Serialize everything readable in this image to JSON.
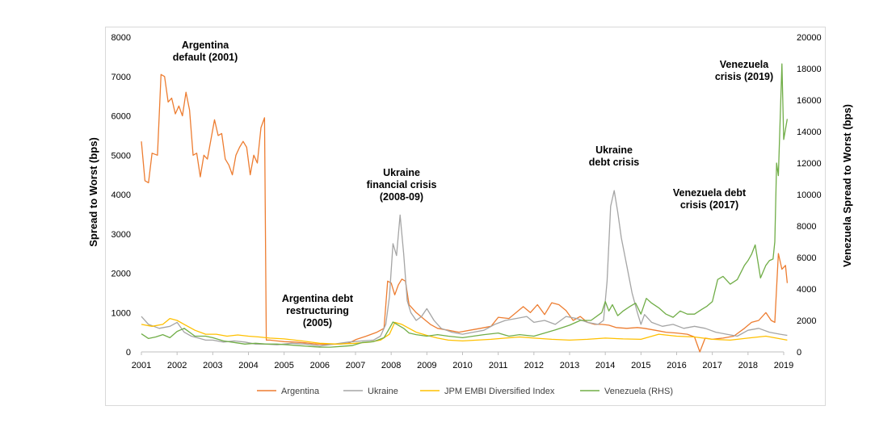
{
  "chart_data": {
    "type": "line",
    "ylabel": "Spread to Worst (bps)",
    "y2label": "Venezuela Spread to Worst (bps)",
    "ylim": [
      0,
      8000
    ],
    "y2lim": [
      0,
      20000
    ],
    "yticks": [
      "0",
      "1000",
      "2000",
      "3000",
      "4000",
      "5000",
      "6000",
      "7000",
      "8000"
    ],
    "y2ticks": [
      "0",
      "2000",
      "4000",
      "6000",
      "8000",
      "10000",
      "12000",
      "14000",
      "16000",
      "18000",
      "20000"
    ],
    "xlim": [
      2001,
      2019
    ],
    "xticks": [
      "2001",
      "2002",
      "2003",
      "2004",
      "2005",
      "2006",
      "2007",
      "2008",
      "2009",
      "2010",
      "2011",
      "2012",
      "2013",
      "2014",
      "2015",
      "2016",
      "2017",
      "2018",
      "2019"
    ],
    "grid": false,
    "legend_position": "bottom",
    "series": [
      {
        "name": "Argentina",
        "color": "#ED7D31",
        "axis": "left",
        "x": [
          2001.0,
          2001.1,
          2001.2,
          2001.3,
          2001.45,
          2001.55,
          2001.65,
          2001.75,
          2001.85,
          2001.95,
          2002.05,
          2002.15,
          2002.25,
          2002.35,
          2002.45,
          2002.55,
          2002.65,
          2002.75,
          2002.85,
          2002.95,
          2003.05,
          2003.15,
          2003.25,
          2003.35,
          2003.45,
          2003.55,
          2003.65,
          2003.75,
          2003.85,
          2003.95,
          2004.05,
          2004.15,
          2004.25,
          2004.35,
          2004.45,
          2004.5,
          2004.6,
          2004.8,
          2005.0,
          2005.3,
          2005.6,
          2005.9,
          2006.2,
          2006.5,
          2006.8,
          2007.0,
          2007.3,
          2007.6,
          2007.8,
          2007.9,
          2008.0,
          2008.1,
          2008.2,
          2008.3,
          2008.4,
          2008.5,
          2008.7,
          2008.9,
          2009.1,
          2009.3,
          2009.6,
          2009.9,
          2010.2,
          2010.5,
          2010.8,
          2011.0,
          2011.3,
          2011.5,
          2011.7,
          2011.9,
          2012.1,
          2012.3,
          2012.5,
          2012.7,
          2012.9,
          2013.1,
          2013.3,
          2013.5,
          2013.7,
          2013.9,
          2014.1,
          2014.3,
          2014.6,
          2014.9,
          2015.1,
          2015.4,
          2015.7,
          2016.0,
          2016.3,
          2016.5,
          2016.65,
          2016.8,
          2017.0,
          2017.3,
          2017.6,
          2017.9,
          2018.1,
          2018.3,
          2018.5,
          2018.65,
          2018.75,
          2018.85,
          2018.95,
          2019.05,
          2019.1
        ],
        "y": [
          5350,
          4350,
          4300,
          5050,
          5000,
          7050,
          7000,
          6350,
          6450,
          6050,
          6250,
          6000,
          6600,
          6150,
          5000,
          5050,
          4450,
          5000,
          4900,
          5400,
          5900,
          5500,
          5550,
          4900,
          4750,
          4500,
          5000,
          5200,
          5350,
          5200,
          4500,
          5000,
          4800,
          5700,
          5950,
          300,
          300,
          280,
          260,
          250,
          230,
          200,
          190,
          200,
          220,
          310,
          400,
          500,
          600,
          1800,
          1750,
          1450,
          1700,
          1850,
          1800,
          1200,
          1000,
          850,
          700,
          600,
          550,
          500,
          550,
          600,
          650,
          880,
          850,
          1000,
          1150,
          1000,
          1200,
          950,
          1250,
          1200,
          1050,
          800,
          900,
          750,
          700,
          700,
          680,
          620,
          600,
          620,
          600,
          550,
          500,
          480,
          450,
          380,
          0,
          350,
          320,
          350,
          400,
          600,
          750,
          800,
          1000,
          800,
          750,
          2500,
          2100,
          2200,
          1750
        ]
      },
      {
        "name": "Ukraine",
        "color": "#A5A5A5",
        "axis": "left",
        "x": [
          2001.0,
          2001.2,
          2001.5,
          2001.8,
          2002.0,
          2002.2,
          2002.4,
          2002.6,
          2002.8,
          2003.0,
          2003.3,
          2003.6,
          2003.9,
          2004.2,
          2004.5,
          2004.8,
          2005.2,
          2005.6,
          2006.0,
          2006.4,
          2006.8,
          2007.2,
          2007.5,
          2007.7,
          2007.85,
          2007.95,
          2008.05,
          2008.15,
          2008.25,
          2008.35,
          2008.45,
          2008.55,
          2008.7,
          2008.85,
          2009.0,
          2009.2,
          2009.4,
          2009.7,
          2010.0,
          2010.3,
          2010.6,
          2010.9,
          2011.2,
          2011.5,
          2011.8,
          2012.0,
          2012.3,
          2012.6,
          2012.9,
          2013.2,
          2013.5,
          2013.8,
          2013.95,
          2014.05,
          2014.15,
          2014.25,
          2014.35,
          2014.45,
          2014.6,
          2014.75,
          2014.9,
          2015.0,
          2015.1,
          2015.3,
          2015.6,
          2015.9,
          2016.2,
          2016.5,
          2016.8,
          2017.1,
          2017.4,
          2017.7,
          2018.0,
          2018.3,
          2018.6,
          2018.9,
          2019.1
        ],
        "y": [
          900,
          700,
          600,
          650,
          750,
          500,
          400,
          350,
          300,
          300,
          250,
          280,
          250,
          200,
          200,
          180,
          220,
          200,
          150,
          200,
          250,
          280,
          300,
          400,
          700,
          1400,
          2750,
          2450,
          3480,
          2500,
          1300,
          1000,
          800,
          900,
          1100,
          800,
          600,
          500,
          450,
          500,
          550,
          700,
          800,
          850,
          900,
          750,
          800,
          700,
          900,
          850,
          750,
          700,
          800,
          1800,
          3700,
          4100,
          3550,
          2900,
          2200,
          1500,
          1000,
          700,
          950,
          750,
          650,
          700,
          600,
          650,
          600,
          500,
          450,
          400,
          550,
          600,
          500,
          450,
          420
        ]
      },
      {
        "name": "JPM EMBI Diversified Index",
        "color": "#FFC000",
        "axis": "left",
        "x": [
          2001.0,
          2001.3,
          2001.6,
          2001.8,
          2002.0,
          2002.2,
          2002.5,
          2002.8,
          2003.1,
          2003.4,
          2003.7,
          2004.0,
          2004.3,
          2004.6,
          2005.0,
          2005.5,
          2006.0,
          2006.5,
          2007.0,
          2007.4,
          2007.7,
          2007.95,
          2008.1,
          2008.3,
          2008.5,
          2008.7,
          2009.0,
          2009.3,
          2009.6,
          2010.0,
          2010.4,
          2010.8,
          2011.2,
          2011.6,
          2012.0,
          2012.5,
          2013.0,
          2013.5,
          2014.0,
          2014.5,
          2015.0,
          2015.5,
          2016.0,
          2016.5,
          2017.0,
          2017.5,
          2018.0,
          2018.5,
          2019.1
        ],
        "y": [
          700,
          650,
          700,
          850,
          800,
          700,
          550,
          450,
          450,
          400,
          430,
          400,
          380,
          350,
          330,
          280,
          220,
          200,
          220,
          250,
          300,
          450,
          750,
          700,
          600,
          500,
          420,
          350,
          300,
          280,
          300,
          320,
          350,
          380,
          350,
          320,
          300,
          320,
          350,
          330,
          320,
          450,
          400,
          380,
          320,
          300,
          350,
          400,
          300
        ]
      },
      {
        "name": "Venezuela (RHS)",
        "color": "#70AD47",
        "axis": "right",
        "x": [
          2001.0,
          2001.2,
          2001.4,
          2001.6,
          2001.8,
          2002.0,
          2002.2,
          2002.5,
          2002.8,
          2003.0,
          2003.3,
          2003.6,
          2003.9,
          2004.2,
          2004.5,
          2004.8,
          2005.1,
          2005.4,
          2005.7,
          2006.0,
          2006.3,
          2006.6,
          2006.9,
          2007.2,
          2007.5,
          2007.8,
          2007.95,
          2008.05,
          2008.2,
          2008.35,
          2008.5,
          2008.7,
          2009.0,
          2009.3,
          2009.6,
          2010.0,
          2010.3,
          2010.6,
          2011.0,
          2011.3,
          2011.6,
          2012.0,
          2012.3,
          2012.6,
          2013.0,
          2013.3,
          2013.6,
          2013.9,
          2014.0,
          2014.1,
          2014.2,
          2014.35,
          2014.5,
          2014.7,
          2014.85,
          2015.0,
          2015.15,
          2015.3,
          2015.5,
          2015.7,
          2015.9,
          2016.1,
          2016.3,
          2016.5,
          2016.7,
          2016.85,
          2017.0,
          2017.15,
          2017.3,
          2017.5,
          2017.7,
          2017.9,
          2018.0,
          2018.1,
          2018.2,
          2018.35,
          2018.5,
          2018.6,
          2018.7,
          2018.75,
          2018.8,
          2018.85,
          2018.95,
          2019.0,
          2019.1
        ],
        "y": [
          1150,
          850,
          950,
          1100,
          900,
          1300,
          1500,
          1000,
          1000,
          900,
          700,
          600,
          500,
          550,
          500,
          500,
          450,
          400,
          350,
          300,
          300,
          350,
          400,
          600,
          650,
          900,
          1500,
          1900,
          1700,
          1500,
          1200,
          1100,
          1000,
          1100,
          1000,
          900,
          1000,
          1100,
          1200,
          1000,
          1100,
          1000,
          1200,
          1400,
          1700,
          2000,
          2000,
          2500,
          3200,
          2600,
          3000,
          2300,
          2600,
          2900,
          3100,
          2400,
          3400,
          3100,
          2800,
          2400,
          2200,
          2600,
          2400,
          2400,
          2700,
          2900,
          3200,
          4600,
          4800,
          4300,
          4600,
          5500,
          5800,
          6200,
          6800,
          4700,
          5500,
          5800,
          5900,
          7000,
          12000,
          11200,
          18300,
          13500,
          14800
        ]
      }
    ],
    "annotations": [
      {
        "lines": [
          "Argentina",
          "default (2001)"
        ]
      },
      {
        "lines": [
          "Argentina debt",
          "restructuring",
          "(2005)"
        ]
      },
      {
        "lines": [
          "Ukraine",
          "financial crisis",
          "(2008-09)"
        ]
      },
      {
        "lines": [
          "Ukraine",
          "debt crisis"
        ]
      },
      {
        "lines": [
          "Venezuela debt",
          "crisis (2017)"
        ]
      },
      {
        "lines": [
          "Venezuela",
          "crisis (2019)"
        ]
      }
    ]
  }
}
